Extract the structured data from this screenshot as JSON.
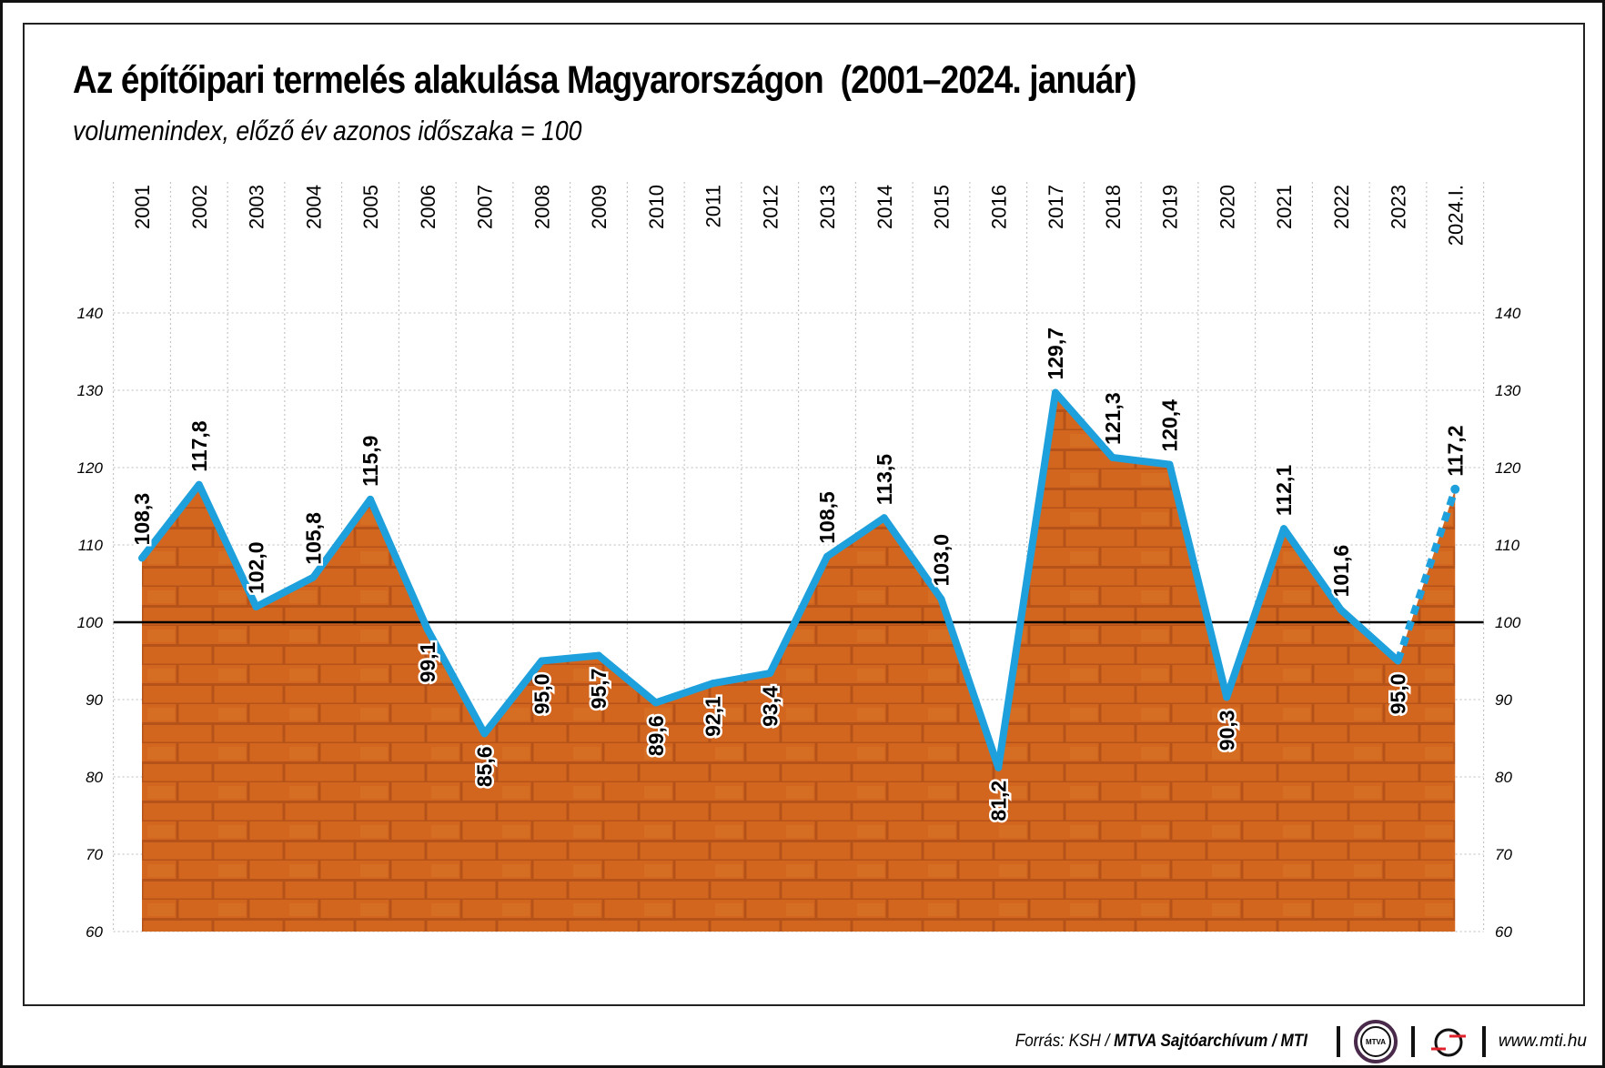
{
  "title": "Az építőipari termelés alakulása Magyarországon  (2001–2024. január)",
  "subtitle": "volumenindex, előző év azonos időszaka = 100",
  "footer": {
    "source_prefix": "Forrás: KSH /",
    "source_bold": "MTVA Sajtóarchívum / MTI",
    "logo1": "MTVA",
    "website": "www.mti.hu"
  },
  "colors": {
    "line": "#1ea0dc",
    "brick": "#d2661f",
    "mortar": "#b5521a",
    "reference": "#000000"
  },
  "chart_data": {
    "type": "line",
    "title": "Az építőipari termelés alakulása Magyarországon  (2001–2024. január)",
    "ylabel": "volumenindex, előző év azonos időszaka = 100",
    "categories": [
      "2001",
      "2002",
      "2003",
      "2004",
      "2005",
      "2006",
      "2007",
      "2008",
      "2009",
      "2010",
      "2011",
      "2012",
      "2013",
      "2014",
      "2015",
      "2016",
      "2017",
      "2018",
      "2019",
      "2020",
      "2021",
      "2022",
      "2023",
      "2024.I."
    ],
    "values": [
      108.3,
      117.8,
      102.0,
      105.8,
      115.9,
      99.1,
      85.6,
      95.0,
      95.7,
      89.6,
      92.1,
      93.4,
      108.5,
      113.5,
      103.0,
      81.2,
      129.7,
      121.3,
      120.4,
      90.3,
      112.1,
      101.6,
      95.0,
      117.2
    ],
    "labels": [
      "108,3",
      "117,8",
      "102,0",
      "105,8",
      "115,9",
      "99,1",
      "85,6",
      "95,0",
      "95,7",
      "89,6",
      "92,1",
      "93,4",
      "108,5",
      "113,5",
      "103,0",
      "81,2",
      "129,7",
      "121,3",
      "120,4",
      "90,3",
      "112,1",
      "101,6",
      "95,0",
      "117,2"
    ],
    "label_position": [
      "above",
      "above",
      "above",
      "above",
      "above",
      "below",
      "below",
      "below",
      "below",
      "below",
      "below",
      "below",
      "above",
      "above",
      "above",
      "below",
      "above",
      "above",
      "above",
      "below",
      "above",
      "above",
      "below",
      "above"
    ],
    "last_segment_dashed": true,
    "reference_line": 100,
    "ylim": [
      60,
      140
    ],
    "yticks": [
      "60",
      "70",
      "80",
      "90",
      "100",
      "110",
      "120",
      "130",
      "140"
    ],
    "grid": true
  }
}
